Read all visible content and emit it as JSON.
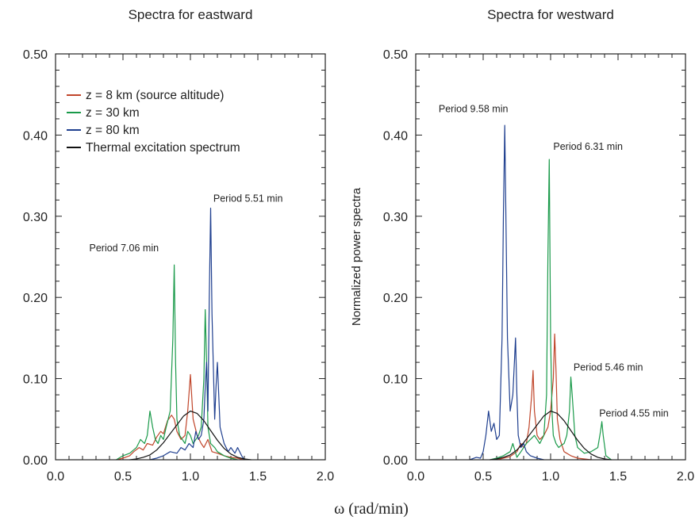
{
  "figure": {
    "shared_xlabel": "ω (rad/min)"
  },
  "colors": {
    "red": "#c0452a",
    "green": "#1a9a4a",
    "blue": "#1f3f8f",
    "black": "#111111"
  },
  "legend": {
    "items": [
      {
        "label": "z = 8 km (source altitude)",
        "color": "#c0452a"
      },
      {
        "label": "z = 30 km",
        "color": "#1a9a4a"
      },
      {
        "label": "z = 80 km",
        "color": "#1f3f8f"
      },
      {
        "label": "Thermal excitation spectrum",
        "color": "#111111"
      }
    ]
  },
  "chart_data": [
    {
      "type": "line",
      "title": "Spectra for eastward",
      "xlabel": "",
      "ylabel": "",
      "xlim": [
        0.0,
        2.0
      ],
      "ylim": [
        0.0,
        0.5
      ],
      "xticks": [
        "0.0",
        "0.5",
        "1.0",
        "1.5",
        "2.0"
      ],
      "yticks": [
        "0.00",
        "0.10",
        "0.20",
        "0.30",
        "0.40",
        "0.50"
      ],
      "grid": false,
      "legend": "top-left",
      "annotations": [
        {
          "text": "Period 7.06 min",
          "x": 0.25,
          "y": 0.257
        },
        {
          "text": "Period 5.51 min",
          "x": 1.17,
          "y": 0.318
        }
      ],
      "series": [
        {
          "name": "z = 8 km (source altitude)",
          "color": "#c0452a",
          "x": [
            0.45,
            0.5,
            0.55,
            0.58,
            0.62,
            0.65,
            0.68,
            0.72,
            0.75,
            0.78,
            0.8,
            0.83,
            0.86,
            0.88,
            0.9,
            0.93,
            0.96,
            0.98,
            1.0,
            1.02,
            1.05,
            1.08,
            1.1,
            1.13,
            1.16,
            1.2,
            1.25,
            1.3,
            1.35,
            1.4
          ],
          "y": [
            0.0,
            0.002,
            0.005,
            0.01,
            0.015,
            0.012,
            0.02,
            0.018,
            0.028,
            0.035,
            0.032,
            0.048,
            0.055,
            0.05,
            0.035,
            0.025,
            0.03,
            0.06,
            0.105,
            0.05,
            0.03,
            0.02,
            0.015,
            0.025,
            0.01,
            0.008,
            0.005,
            0.003,
            0.002,
            0.0
          ]
        },
        {
          "name": "z = 30 km",
          "color": "#1a9a4a",
          "x": [
            0.45,
            0.5,
            0.55,
            0.6,
            0.63,
            0.66,
            0.68,
            0.7,
            0.72,
            0.74,
            0.76,
            0.78,
            0.8,
            0.82,
            0.85,
            0.87,
            0.88,
            0.89,
            0.9,
            0.92,
            0.94,
            0.96,
            0.98,
            1.0,
            1.02,
            1.04,
            1.06,
            1.08,
            1.1,
            1.11,
            1.12,
            1.13,
            1.15,
            1.18,
            1.2,
            1.22,
            1.25,
            1.28,
            1.3,
            1.35
          ],
          "y": [
            0.0,
            0.005,
            0.008,
            0.015,
            0.025,
            0.02,
            0.03,
            0.06,
            0.04,
            0.025,
            0.02,
            0.03,
            0.025,
            0.04,
            0.06,
            0.15,
            0.24,
            0.12,
            0.05,
            0.03,
            0.025,
            0.02,
            0.035,
            0.03,
            0.02,
            0.025,
            0.03,
            0.04,
            0.1,
            0.185,
            0.12,
            0.04,
            0.02,
            0.015,
            0.01,
            0.008,
            0.005,
            0.003,
            0.002,
            0.0
          ]
        },
        {
          "name": "z = 80 km",
          "color": "#1f3f8f",
          "x": [
            0.7,
            0.75,
            0.8,
            0.85,
            0.9,
            0.93,
            0.96,
            0.99,
            1.02,
            1.04,
            1.06,
            1.08,
            1.1,
            1.11,
            1.12,
            1.13,
            1.14,
            1.15,
            1.16,
            1.18,
            1.19,
            1.2,
            1.22,
            1.25,
            1.28,
            1.3,
            1.33,
            1.35,
            1.38,
            1.4
          ],
          "y": [
            0.0,
            0.002,
            0.005,
            0.01,
            0.008,
            0.015,
            0.012,
            0.02,
            0.015,
            0.035,
            0.025,
            0.03,
            0.05,
            0.09,
            0.12,
            0.06,
            0.2,
            0.31,
            0.18,
            0.05,
            0.09,
            0.12,
            0.04,
            0.02,
            0.01,
            0.015,
            0.008,
            0.015,
            0.005,
            0.0
          ]
        },
        {
          "name": "Thermal excitation spectrum",
          "color": "#111111",
          "x": [
            0.55,
            0.6,
            0.65,
            0.7,
            0.75,
            0.8,
            0.85,
            0.9,
            0.95,
            1.0,
            1.05,
            1.1,
            1.15,
            1.2,
            1.25,
            1.3,
            1.35,
            1.4,
            1.45
          ],
          "y": [
            0.0,
            0.001,
            0.003,
            0.006,
            0.012,
            0.021,
            0.032,
            0.043,
            0.054,
            0.06,
            0.057,
            0.048,
            0.036,
            0.024,
            0.014,
            0.007,
            0.003,
            0.001,
            0.0
          ]
        }
      ]
    },
    {
      "type": "line",
      "title": "Spectra for westward",
      "xlabel": "",
      "ylabel": "Normalized power spectra",
      "xlim": [
        0.0,
        2.0
      ],
      "ylim": [
        0.0,
        0.5
      ],
      "xticks": [
        "0.0",
        "0.5",
        "1.0",
        "1.5",
        "2.0"
      ],
      "yticks": [
        "0.00",
        "0.10",
        "0.20",
        "0.30",
        "0.40",
        "0.50"
      ],
      "grid": false,
      "legend": "none",
      "annotations": [
        {
          "text": "Period 9.58 min",
          "x": 0.17,
          "y": 0.428
        },
        {
          "text": "Period 6.31 min",
          "x": 1.02,
          "y": 0.382
        },
        {
          "text": "Period 5.46 min",
          "x": 1.17,
          "y": 0.11
        },
        {
          "text": "Period 4.55 min",
          "x": 1.36,
          "y": 0.053
        }
      ],
      "series": [
        {
          "name": "z = 8 km (source altitude)",
          "color": "#c0452a",
          "x": [
            0.6,
            0.65,
            0.7,
            0.75,
            0.78,
            0.8,
            0.82,
            0.84,
            0.86,
            0.87,
            0.88,
            0.9,
            0.92,
            0.95,
            0.98,
            1.0,
            1.02,
            1.03,
            1.04,
            1.05,
            1.07,
            1.1,
            1.15,
            1.2,
            1.3
          ],
          "y": [
            0.0,
            0.002,
            0.004,
            0.01,
            0.02,
            0.015,
            0.02,
            0.04,
            0.08,
            0.11,
            0.06,
            0.03,
            0.025,
            0.03,
            0.04,
            0.06,
            0.1,
            0.155,
            0.11,
            0.05,
            0.025,
            0.01,
            0.005,
            0.002,
            0.0
          ]
        },
        {
          "name": "z = 30 km",
          "color": "#1a9a4a",
          "x": [
            0.55,
            0.6,
            0.65,
            0.7,
            0.72,
            0.75,
            0.78,
            0.8,
            0.82,
            0.85,
            0.88,
            0.9,
            0.92,
            0.95,
            0.97,
            0.98,
            0.99,
            1.0,
            1.01,
            1.02,
            1.04,
            1.06,
            1.08,
            1.1,
            1.12,
            1.14,
            1.15,
            1.16,
            1.18,
            1.2,
            1.25,
            1.3,
            1.35,
            1.37,
            1.38,
            1.39,
            1.41,
            1.45
          ],
          "y": [
            0.0,
            0.002,
            0.005,
            0.01,
            0.02,
            0.003,
            0.01,
            0.015,
            0.02,
            0.025,
            0.03,
            0.025,
            0.02,
            0.03,
            0.08,
            0.25,
            0.37,
            0.15,
            0.06,
            0.03,
            0.02,
            0.015,
            0.018,
            0.02,
            0.03,
            0.06,
            0.102,
            0.08,
            0.03,
            0.015,
            0.008,
            0.01,
            0.015,
            0.035,
            0.047,
            0.03,
            0.005,
            0.0
          ]
        },
        {
          "name": "z = 80 km",
          "color": "#1f3f8f",
          "x": [
            0.4,
            0.45,
            0.48,
            0.5,
            0.52,
            0.54,
            0.56,
            0.58,
            0.6,
            0.62,
            0.64,
            0.65,
            0.66,
            0.68,
            0.7,
            0.72,
            0.74,
            0.75,
            0.76,
            0.78,
            0.8,
            0.82,
            0.85,
            0.9,
            0.95
          ],
          "y": [
            0.0,
            0.003,
            0.002,
            0.01,
            0.03,
            0.06,
            0.035,
            0.045,
            0.025,
            0.03,
            0.15,
            0.3,
            0.412,
            0.15,
            0.06,
            0.08,
            0.15,
            0.08,
            0.03,
            0.015,
            0.02,
            0.01,
            0.005,
            0.002,
            0.0
          ]
        },
        {
          "name": "Thermal excitation spectrum",
          "color": "#111111",
          "x": [
            0.55,
            0.6,
            0.65,
            0.7,
            0.75,
            0.8,
            0.85,
            0.9,
            0.95,
            1.0,
            1.05,
            1.1,
            1.15,
            1.2,
            1.25,
            1.3,
            1.35,
            1.4,
            1.45
          ],
          "y": [
            0.0,
            0.001,
            0.003,
            0.006,
            0.012,
            0.021,
            0.032,
            0.043,
            0.054,
            0.06,
            0.057,
            0.048,
            0.036,
            0.024,
            0.014,
            0.007,
            0.003,
            0.001,
            0.0
          ]
        }
      ]
    }
  ]
}
